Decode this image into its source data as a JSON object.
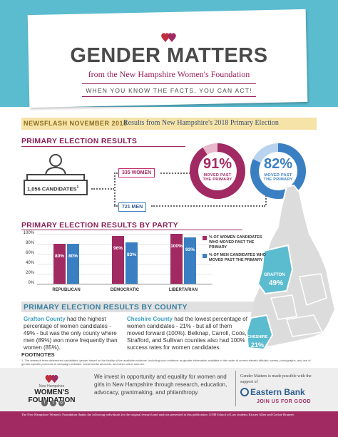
{
  "header": {
    "title": "GENDER MATTERS",
    "subtitle": "from the New Hampshire Women's Foundation",
    "tagline": "WHEN YOU KNOW THE FACTS, YOU CAN ACT!",
    "logo_icon": "hearts-logo-icon"
  },
  "newsflash": {
    "label": "NEWSFLASH NOVEMBER 2018",
    "text": "Results from New Hampshire's 2018 Primary Election"
  },
  "primary_results": {
    "heading": "PRIMARY ELECTION RESULTS",
    "total_candidates": "1,056 CANDIDATES",
    "total_sup": "1",
    "women_count": "335 WOMEN",
    "men_count": "721 MEN",
    "women_pct": "91%",
    "women_moved": "MOVED PAST THE PRIMARY",
    "men_pct": "82%",
    "men_moved": "MOVED PAST THE PRIMARY",
    "women_fraction": 0.91,
    "men_fraction": 0.82,
    "podium_icon": "candidates-podium-icon"
  },
  "party": {
    "heading": "PRIMARY ELECTION RESULTS BY PARTY"
  },
  "chart_data": {
    "type": "bar",
    "categories": [
      "REPUBLICAN",
      "DEMOCRATIC",
      "LIBERTARIAN"
    ],
    "series": [
      {
        "name": "% OF WOMEN CANDIDATES WHO MOVED PAST THE PRIMARY",
        "values": [
          80,
          96,
          100
        ],
        "labels": [
          "80%",
          "96%",
          "100%"
        ]
      },
      {
        "name": "% OF MEN CANDIDATES WHO MOVED PAST THE PRIMARY",
        "values": [
          80,
          83,
          93
        ],
        "labels": [
          "80%",
          "83%",
          "93%"
        ]
      }
    ],
    "yticks": [
      "100%",
      "80%",
      "60%",
      "40%",
      "20%",
      "0%"
    ],
    "ylim": [
      0,
      100
    ],
    "colors": [
      "#a12a63",
      "#3a7fc2"
    ],
    "legend_placement": "right"
  },
  "map": {
    "grafton_label": "GRAFTON",
    "grafton_pct": "49%",
    "cheshire_label": "CHESHIRE",
    "cheshire_pct": "21%"
  },
  "county": {
    "heading": "PRIMARY ELECTION RESULTS BY COUNTY",
    "grafton_name": "Grafton County",
    "grafton_text": " had the highest percentage of women candidates - 49% - but was the only county where men (89%) won more frequently than women (85%).",
    "cheshire_name": "Cheshire County",
    "cheshire_text": " had the lowest percentage of women candidates - 21% - but all of them moved forward (100%). Belknap, Carroll, Coös, Strafford, and Sullivan counties also had 100% success rates for women candidates."
  },
  "footnotes": {
    "heading": "FOOTNOTES",
    "note1": "1.   The research team determined candidates' gender based on the totality of the available evidence, including such evidence as gender information available in the roster of current elected officials; names, photographs, and use of gender-specific pronouns in campaign websites, social media accounts, and other online sources."
  },
  "footer": {
    "org_small": "New Hampshire",
    "org_name": "WOMEN'S FOUNDATION",
    "mission": "We invest in opportunity and equality for women and girls in New Hampshire through research, education, advocacy, grantmaking, and philanthropy.",
    "sponsor_note": "Gender Matters is made possible with the support of",
    "sponsor_name": "Eastern Bank",
    "sponsor_tagline": "JOIN US FOR GOOD",
    "acknowledgment": "The New Hampshire Women's Foundation thanks the following individuals for the original research and analysis presented in this publication: UNH School of Law students Kirsten Allen and Chelsie Brunner.",
    "colors": {
      "brand": "#a12a63",
      "accent": "#5bbcd0",
      "bank": "#2d5d8f"
    }
  }
}
